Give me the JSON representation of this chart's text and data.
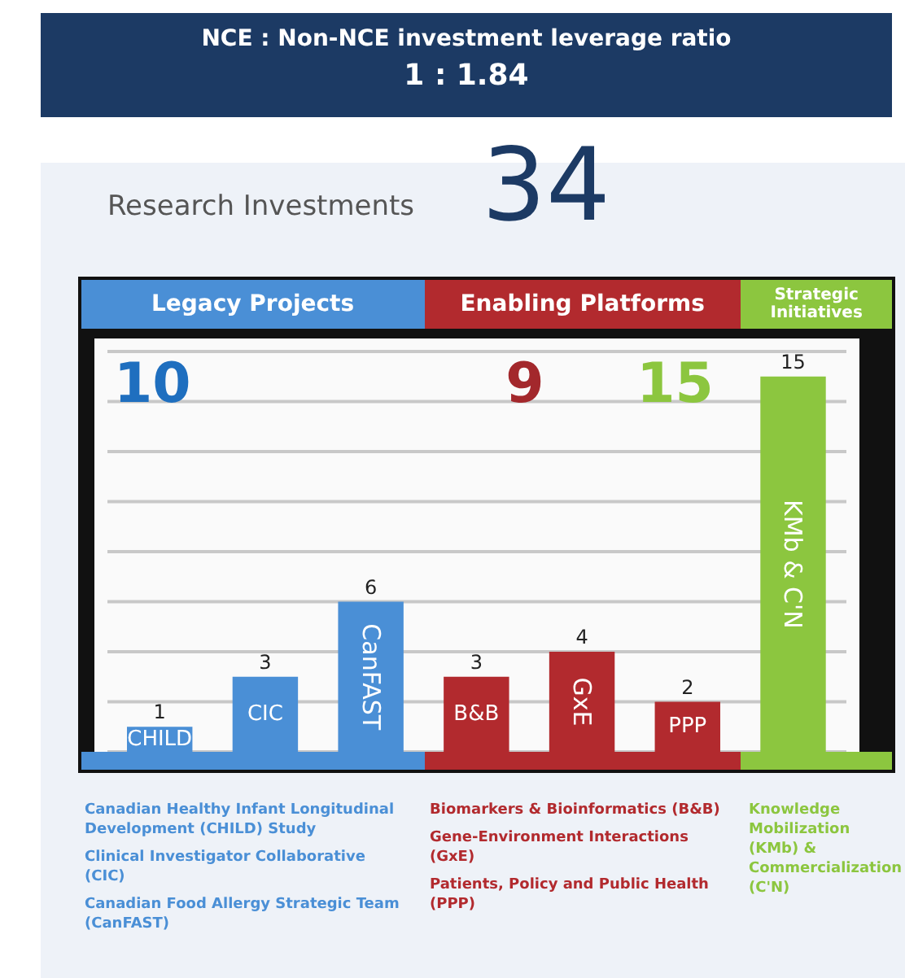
{
  "chart_data": {
    "type": "bar",
    "title": "NCE : Non-NCE investment leverage ratio",
    "subtitle": "1 : 1.84",
    "categories": [
      "CHILD",
      "CIC",
      "CanFAST",
      "B&B",
      "GxE",
      "PPP",
      "KMb & C'N"
    ],
    "values": [
      1,
      3,
      6,
      3,
      4,
      2,
      15
    ],
    "colors": [
      "#4a8fd6",
      "#4a8fd6",
      "#4a8fd6",
      "#b22a2e",
      "#b22a2e",
      "#b22a2e",
      "#8cc63f"
    ],
    "ylim": [
      0,
      16
    ],
    "grid": "y",
    "tick_labels": false,
    "data_labels": true,
    "annotations": [
      "Research Investments",
      "34",
      "Legacy Projects",
      "Enabling Platforms",
      "Strategic Initiatives",
      "10",
      "9",
      "15",
      "Canadian Healthy Infant Longitudinal Development (CHILD) Study",
      "Clinical Investigator Collaborative (CIC)",
      "Canadian Food Allergy Strategic Team (CanFAST)",
      "Biomarkers & Bioinformatics (B&B)",
      "Gene-Environment Interactions (GxE)",
      "Patients, Policy and Public Health (PPP)",
      "Knowledge Mobilization (KMb) & Commercialization (C'N)"
    ]
  }
}
